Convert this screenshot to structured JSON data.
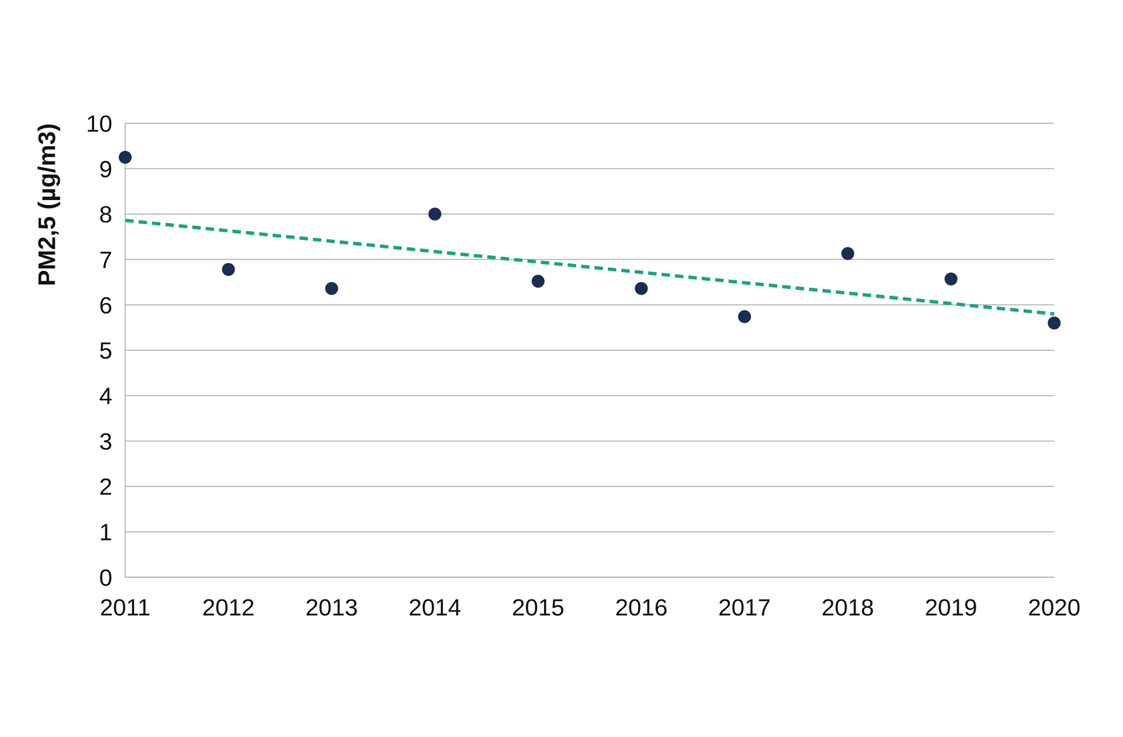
{
  "chart_data": {
    "type": "scatter",
    "y_label": "PM2,5 (µg/m3)",
    "categories": [
      "2011",
      "2012",
      "2013",
      "2014",
      "2015",
      "2016",
      "2017",
      "2018",
      "2019",
      "2020"
    ],
    "series": [
      {
        "type": "scatter",
        "marker": "circle",
        "color": "#1b2d52",
        "values": [
          9.25,
          6.78,
          6.36,
          8.0,
          6.52,
          6.36,
          5.74,
          7.13,
          6.57,
          5.6
        ]
      },
      {
        "type": "line",
        "line_style": "dashed",
        "color": "#17a583",
        "values": [
          7.86,
          null,
          null,
          null,
          null,
          null,
          null,
          null,
          null,
          5.8
        ]
      }
    ],
    "ylim": [
      0,
      10
    ],
    "yticks": [
      0,
      1,
      2,
      3,
      4,
      5,
      6,
      7,
      8,
      9,
      10
    ],
    "grid": true
  }
}
